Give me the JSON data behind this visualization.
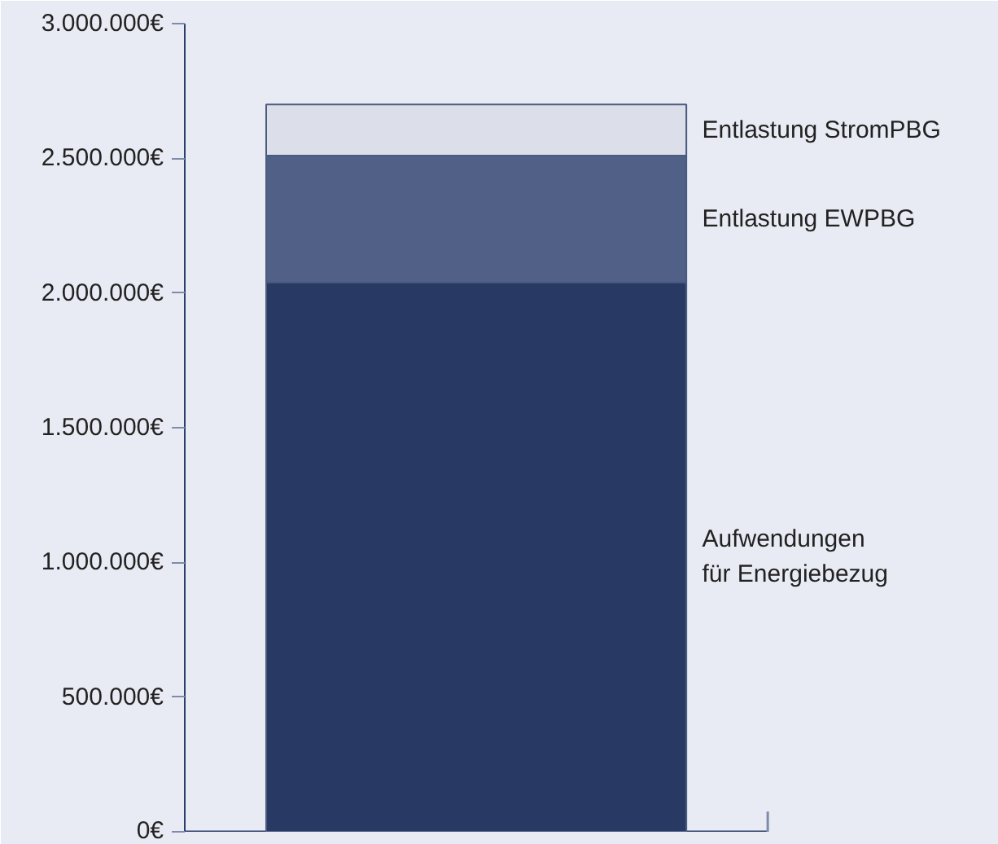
{
  "chart_data": {
    "type": "bar",
    "stacked": true,
    "categories": [
      null
    ],
    "series": [
      {
        "name": "Aufwendungen\nfür Energiebezug",
        "color": "#283a63",
        "values": [
          2040000
        ]
      },
      {
        "name": "Entlastung EWPBG",
        "color": "#506086",
        "values": [
          470000
        ]
      },
      {
        "name": "Entlastung StromPBG",
        "color": "#dcdfe9",
        "values": [
          190000
        ]
      }
    ],
    "ylim": [
      0,
      3000000
    ],
    "yticks": [
      {
        "value": 0,
        "label": "0€"
      },
      {
        "value": 500000,
        "label": "500.000€"
      },
      {
        "value": 1000000,
        "label": "1.000.000€"
      },
      {
        "value": 1500000,
        "label": "1.500.000€"
      },
      {
        "value": 2000000,
        "label": "2.000.000€"
      },
      {
        "value": 2500000,
        "label": "2.500.000€"
      },
      {
        "value": 3000000,
        "label": "3.000.000€"
      }
    ],
    "grid": false,
    "tick_labels": "y"
  }
}
